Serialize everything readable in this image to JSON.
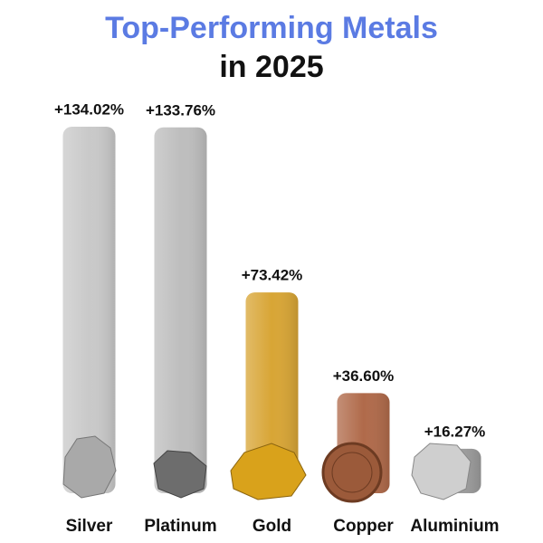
{
  "chart_data": {
    "type": "bar",
    "title": "Top-Performing Metals",
    "subtitle": "in 2025",
    "categories": [
      "Silver",
      "Platinum",
      "Gold",
      "Copper",
      "Aluminium"
    ],
    "values": [
      134.02,
      133.76,
      73.42,
      36.6,
      16.27
    ],
    "value_labels": [
      "+134.02%",
      "+133.76%",
      "+73.42%",
      "+36.60%",
      "+16.27%"
    ],
    "colors": [
      "#c9c9c9",
      "#bebebe",
      "#d8a535",
      "#b06a4a",
      "#9c9c9c"
    ]
  }
}
